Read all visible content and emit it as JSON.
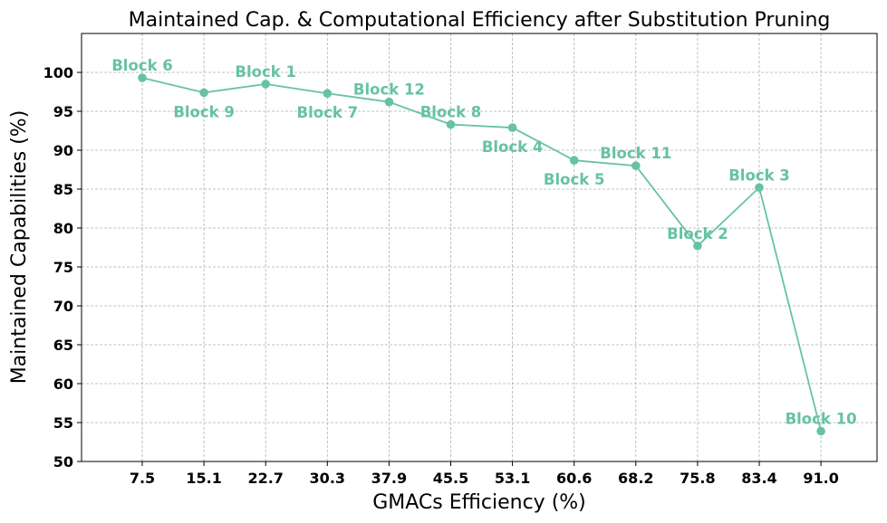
{
  "chart_data": {
    "type": "line",
    "title": "Maintained Cap. & Computational Efficiency after Substitution Pruning",
    "xlabel": "GMACs Efficiency (%)",
    "ylabel": "Maintained Capabilities (%)",
    "x_ticks": [
      "7.5",
      "15.1",
      "22.7",
      "30.3",
      "37.9",
      "45.5",
      "53.1",
      "60.6",
      "68.2",
      "75.8",
      "83.4",
      "91.0"
    ],
    "y_ticks": [
      "50",
      "55",
      "60",
      "65",
      "70",
      "75",
      "80",
      "85",
      "90",
      "95",
      "100"
    ],
    "ylim": [
      50,
      105
    ],
    "grid": true,
    "color": "#66c2a5",
    "points": [
      {
        "x": 7.5,
        "y": 99.3,
        "label": "Block 6",
        "label_pos": "above"
      },
      {
        "x": 15.1,
        "y": 97.4,
        "label": "Block 9",
        "label_pos": "below"
      },
      {
        "x": 22.7,
        "y": 98.5,
        "label": "Block 1",
        "label_pos": "above"
      },
      {
        "x": 30.3,
        "y": 97.3,
        "label": "Block 7",
        "label_pos": "below"
      },
      {
        "x": 37.9,
        "y": 96.2,
        "label": "Block 12",
        "label_pos": "above"
      },
      {
        "x": 45.5,
        "y": 93.3,
        "label": "Block 8",
        "label_pos": "above"
      },
      {
        "x": 53.1,
        "y": 92.9,
        "label": "Block 4",
        "label_pos": "below"
      },
      {
        "x": 60.6,
        "y": 88.7,
        "label": "Block 5",
        "label_pos": "below"
      },
      {
        "x": 68.2,
        "y": 88.0,
        "label": "Block 11",
        "label_pos": "above"
      },
      {
        "x": 75.8,
        "y": 77.7,
        "label": "Block 2",
        "label_pos": "above"
      },
      {
        "x": 83.4,
        "y": 85.2,
        "label": "Block 3",
        "label_pos": "above"
      },
      {
        "x": 91.0,
        "y": 53.9,
        "label": "Block 10",
        "label_pos": "above"
      }
    ]
  }
}
